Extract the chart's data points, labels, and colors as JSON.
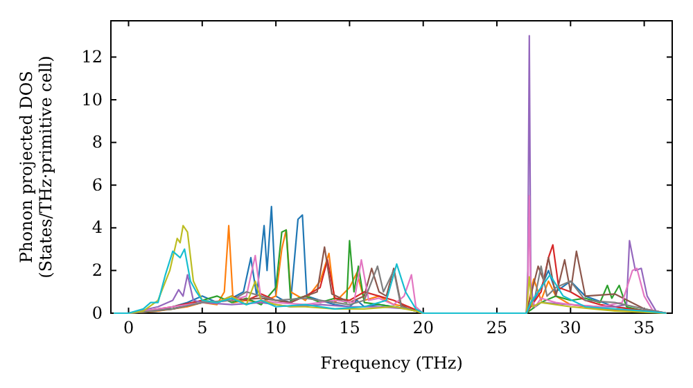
{
  "chart_data": {
    "type": "line",
    "xlabel": "Frequency (THz)",
    "ylabel": "Phonon projected DOS\n(States/THz·primitive cell)",
    "xlim": [
      -1.2,
      36.9
    ],
    "ylim": [
      0,
      13.7
    ],
    "xticks": [
      0,
      5,
      10,
      15,
      20,
      25,
      30,
      35
    ],
    "yticks": [
      0,
      2,
      4,
      6,
      8,
      10,
      12
    ],
    "grid": false,
    "marker": "none",
    "line_style": "solid",
    "series": [
      {
        "color": "#1f77b4",
        "x": [
          -1,
          0,
          2,
          4,
          5,
          6,
          7,
          7.8,
          8.3,
          8.7,
          9.2,
          9.4,
          9.7,
          10,
          10.5,
          11,
          11.5,
          11.8,
          12.1,
          13,
          14,
          15,
          15.5,
          16,
          17,
          18,
          19,
          20,
          27,
          28,
          28.5,
          29,
          30,
          31,
          33,
          36.5
        ],
        "values": [
          0,
          0,
          0.1,
          0.5,
          0.8,
          0.5,
          0.7,
          1.0,
          2.6,
          0.8,
          4.1,
          2.0,
          5.0,
          0.8,
          0.6,
          0.5,
          4.4,
          4.6,
          0.8,
          0.6,
          0.4,
          0.3,
          0.6,
          0.3,
          0.4,
          0.3,
          0.2,
          0,
          0,
          1.2,
          2.0,
          1.0,
          1.5,
          0.8,
          0.3,
          0
        ]
      },
      {
        "color": "#ff7f0e",
        "x": [
          -1,
          0,
          2,
          4,
          5,
          6,
          6.5,
          6.8,
          7.1,
          8,
          9,
          10,
          10.4,
          10.7,
          11,
          12,
          13,
          13.6,
          14,
          15,
          15.5,
          16,
          17,
          18,
          19,
          20,
          27,
          27.5,
          28,
          28.5,
          29,
          30,
          32,
          36.5
        ],
        "values": [
          0,
          0,
          0.1,
          0.3,
          0.5,
          0.4,
          1.0,
          4.1,
          0.5,
          0.6,
          0.5,
          0.8,
          3.0,
          3.9,
          1.0,
          0.6,
          1.5,
          2.8,
          0.5,
          1.2,
          1.9,
          0.6,
          0.8,
          0.4,
          0.3,
          0,
          0,
          1.6,
          0.6,
          1.5,
          0.8,
          0.4,
          0.2,
          0
        ]
      },
      {
        "color": "#2ca02c",
        "x": [
          -1,
          0,
          3,
          5,
          6,
          7,
          8,
          9,
          10,
          10.4,
          10.7,
          11,
          12,
          13,
          14,
          14.8,
          15.0,
          15.3,
          15.6,
          16,
          17,
          18,
          19,
          20,
          27,
          28,
          29,
          30,
          31,
          32,
          32.5,
          32.8,
          33.3,
          33.8,
          35,
          36.5
        ],
        "values": [
          0,
          0,
          0.2,
          0.6,
          0.8,
          0.5,
          0.7,
          0.4,
          1.2,
          3.8,
          3.9,
          0.6,
          0.8,
          0.5,
          0.7,
          0.5,
          3.4,
          1.0,
          2.2,
          0.5,
          0.4,
          0.3,
          0.2,
          0,
          0,
          0.5,
          0.8,
          0.6,
          0.7,
          0.5,
          1.3,
          0.7,
          1.3,
          0.3,
          0.1,
          0
        ]
      },
      {
        "color": "#d62728",
        "x": [
          -1,
          0,
          3,
          5,
          6,
          7,
          8,
          9,
          10,
          11,
          12,
          13,
          13.5,
          14,
          15,
          16,
          17,
          18,
          19,
          20,
          27,
          28,
          28.5,
          28.8,
          29.2,
          30,
          31,
          32,
          34,
          36.5
        ],
        "values": [
          0,
          0,
          0.3,
          0.6,
          0.5,
          0.8,
          0.6,
          0.9,
          0.6,
          0.5,
          0.8,
          1.2,
          2.5,
          0.7,
          0.6,
          1.0,
          0.8,
          0.6,
          0.3,
          0,
          0,
          1.0,
          2.6,
          3.2,
          1.2,
          1.0,
          0.6,
          0.4,
          0.2,
          0
        ]
      },
      {
        "color": "#9467bd",
        "x": [
          -1,
          0,
          2,
          3,
          3.4,
          3.7,
          4.0,
          4.4,
          5,
          7,
          9,
          11,
          13,
          15,
          17,
          19,
          20,
          27,
          27.1,
          27.2,
          27.3,
          27.5,
          28,
          30,
          32,
          33,
          33.8,
          34.0,
          34.4,
          34.8,
          35.2,
          35.8,
          36.5
        ],
        "values": [
          0,
          0,
          0.3,
          0.6,
          1.1,
          0.8,
          1.8,
          0.6,
          0.5,
          0.4,
          0.5,
          0.3,
          0.4,
          0.3,
          0.3,
          0.2,
          0,
          0,
          2.0,
          13.0,
          1.5,
          0.3,
          0.5,
          0.4,
          0.3,
          0.3,
          0.4,
          3.4,
          2.0,
          2.1,
          0.8,
          0.1,
          0
        ]
      },
      {
        "color": "#8c564b",
        "x": [
          -1,
          0,
          3,
          5,
          7,
          9,
          11,
          12,
          12.8,
          13.3,
          13.8,
          15,
          16,
          16.5,
          17,
          17.5,
          18,
          18.5,
          19,
          20,
          27,
          27.8,
          28.2,
          28.5,
          29,
          29.6,
          30,
          30.4,
          31,
          33,
          35,
          36.5
        ],
        "values": [
          0,
          0,
          0.2,
          0.5,
          0.6,
          0.7,
          0.5,
          0.8,
          1.0,
          3.1,
          0.9,
          0.5,
          0.8,
          2.1,
          1.0,
          0.8,
          2.1,
          0.4,
          0.2,
          0,
          0,
          2.2,
          1.5,
          2.6,
          0.8,
          2.5,
          1.0,
          2.9,
          0.8,
          0.9,
          0.2,
          0
        ]
      },
      {
        "color": "#e377c2",
        "x": [
          -1,
          0,
          3,
          5,
          7,
          8,
          8.6,
          9,
          10,
          12,
          14,
          15.3,
          15.8,
          16.3,
          17,
          18,
          18.7,
          19.2,
          19.5,
          20,
          27,
          27.1,
          27.2,
          27.3,
          27.6,
          28,
          29,
          30,
          32,
          33.5,
          34.2,
          34.5,
          35,
          35.6,
          36.5
        ],
        "values": [
          0,
          0,
          0.3,
          0.5,
          0.6,
          0.8,
          2.7,
          0.6,
          0.5,
          0.4,
          0.6,
          0.5,
          2.5,
          0.6,
          0.7,
          0.4,
          0.8,
          1.8,
          0.3,
          0,
          0,
          1.0,
          5.5,
          0.8,
          0.3,
          0.7,
          0.5,
          0.4,
          0.3,
          0.5,
          2.0,
          2.1,
          0.8,
          0.1,
          0
        ]
      },
      {
        "color": "#7f7f7f",
        "x": [
          -1,
          0,
          3,
          5,
          7,
          8,
          9,
          10,
          12,
          14,
          15,
          16,
          16.9,
          17.3,
          18,
          18.5,
          19,
          20,
          27,
          27.6,
          28,
          28.4,
          29,
          30,
          31,
          33,
          35,
          36.5
        ],
        "values": [
          0,
          0,
          0.2,
          0.5,
          0.6,
          1.0,
          0.8,
          0.6,
          0.7,
          0.5,
          0.4,
          0.6,
          2.2,
          1.0,
          2.0,
          0.3,
          0.2,
          0,
          0,
          0.8,
          2.2,
          0.8,
          1.2,
          1.5,
          0.6,
          0.5,
          0.2,
          0
        ]
      },
      {
        "color": "#bcbd22",
        "x": [
          -1,
          0,
          1,
          2,
          2.8,
          3.3,
          3.5,
          3.7,
          4.0,
          4.4,
          5,
          6,
          7,
          8,
          8.6,
          9,
          10,
          11,
          12,
          14,
          16,
          18,
          19.5,
          20,
          27,
          27.2,
          27.4,
          28,
          30,
          33,
          36.5
        ],
        "values": [
          0,
          0,
          0.1,
          0.6,
          2.0,
          3.5,
          3.3,
          4.1,
          3.8,
          1.5,
          0.6,
          0.5,
          0.8,
          0.4,
          1.5,
          0.6,
          0.4,
          0.3,
          0.3,
          0.2,
          0.2,
          0.3,
          0.1,
          0,
          0,
          1.7,
          0.3,
          0.5,
          0.3,
          0.1,
          0
        ]
      },
      {
        "color": "#17becf",
        "x": [
          -1,
          0,
          1,
          1.5,
          2,
          2.5,
          3,
          3.5,
          3.8,
          4.2,
          4.6,
          5,
          6,
          7,
          8,
          9,
          10,
          12,
          14,
          16,
          17.5,
          18.2,
          18.8,
          19.5,
          20,
          27,
          27.3,
          28,
          28.6,
          29.5,
          31,
          33,
          35,
          36.5
        ],
        "values": [
          0,
          0,
          0.2,
          0.5,
          0.5,
          1.8,
          2.9,
          2.6,
          3.0,
          1.5,
          1.0,
          0.6,
          0.5,
          0.7,
          0.4,
          0.6,
          0.3,
          0.4,
          0.2,
          0.3,
          0.6,
          2.3,
          1.0,
          0.2,
          0,
          0,
          0.5,
          1.2,
          1.8,
          0.8,
          0.3,
          0.2,
          0.1,
          0
        ]
      }
    ]
  }
}
